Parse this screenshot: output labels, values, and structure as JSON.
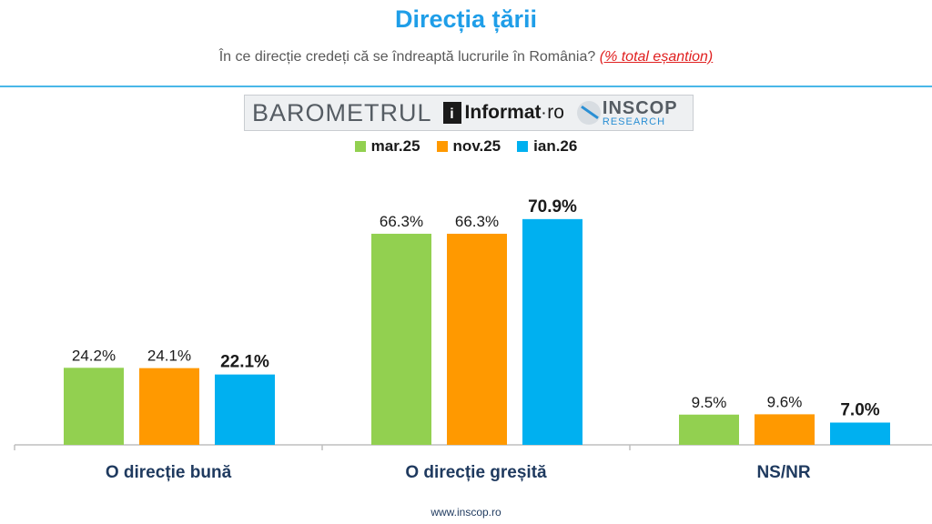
{
  "header": {
    "title": "Direcția țării",
    "subtitle": "În ce direcție credeți că se îndreaptă lucrurile în România?",
    "subtitle_note": "(% total eșantion)"
  },
  "logos": {
    "barometer": "BAROMETRUL",
    "informat_mark": "i",
    "informat_name": "Informat",
    "informat_domain": "ro",
    "inscop_name": "INSCOP",
    "inscop_sub": "RESEARCH"
  },
  "colors": {
    "accent": "#1f9ee8",
    "axis": "#bfbfbf",
    "category_label": "#1f3a5f",
    "series": [
      "#92d050",
      "#ff9900",
      "#00b0f0"
    ]
  },
  "chart_data": {
    "type": "bar",
    "title": "Direcția țării",
    "xlabel": "",
    "ylabel": "",
    "ylim": [
      0,
      80
    ],
    "grid": false,
    "legend": "top",
    "categories": [
      "O direcție bună",
      "O direcție greșită",
      "NS/NR"
    ],
    "series": [
      {
        "name": "mar.25",
        "values": [
          24.2,
          66.3,
          9.5
        ],
        "labels": [
          "24.2%",
          "66.3%",
          "9.5%"
        ]
      },
      {
        "name": "nov.25",
        "values": [
          24.1,
          66.3,
          9.6
        ],
        "labels": [
          "24.1%",
          "66.3%",
          "9.6%"
        ]
      },
      {
        "name": "ian.26",
        "values": [
          22.1,
          70.9,
          7.0
        ],
        "labels": [
          "22.1%",
          "70.9%",
          "7.0%"
        ]
      }
    ]
  },
  "footer": {
    "url": "www.inscop.ro"
  }
}
